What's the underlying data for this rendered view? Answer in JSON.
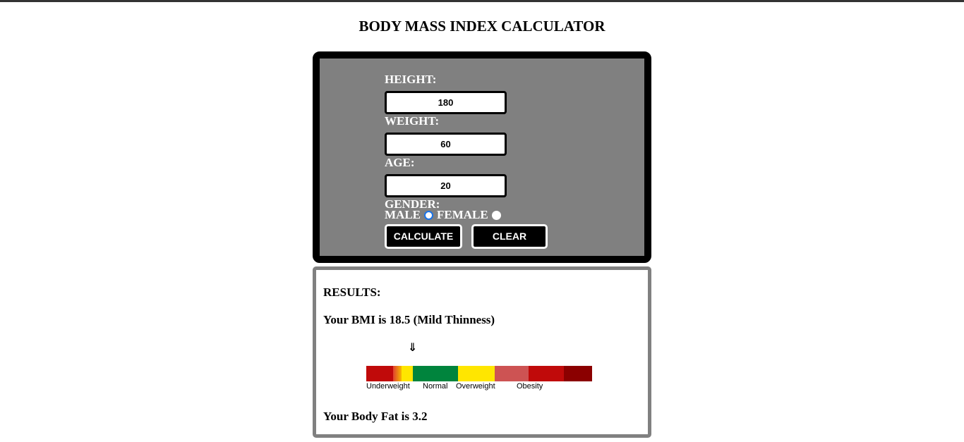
{
  "page": {
    "title": "BODY MASS INDEX CALCULATOR"
  },
  "form": {
    "height_label": "HEIGHT:",
    "height_value": "180",
    "weight_label": "WEIGHT:",
    "weight_value": "60",
    "age_label": "AGE:",
    "age_value": "20",
    "gender_label": "GENDER:",
    "gender_options": [
      {
        "label": "MALE",
        "checked": true
      },
      {
        "label": "FEMALE",
        "checked": false
      }
    ],
    "calculate_label": "CALCULATE",
    "clear_label": "CLEAR"
  },
  "results": {
    "heading": "RESULTS:",
    "bmi_text": "Your BMI is 18.5 (Mild Thinness)",
    "indicator_arrow": "⇓",
    "scale_labels": {
      "underweight": "Underweight",
      "normal": "Normal",
      "overweight": "Overweight",
      "obesity": "Obesity"
    },
    "body_fat_text": "Your Body Fat is 3.2"
  },
  "colors": {
    "panel_bg": "#808080",
    "panel_border": "#000000",
    "severe_thin": "#c00a0a",
    "thin_transition": "#e35a3a",
    "mild_thin": "#ffe600",
    "normal": "#00843d",
    "overweight": "#ffe600",
    "obese1": "#cd5353",
    "obese2": "#c00a0a",
    "obese3": "#8b0000"
  }
}
